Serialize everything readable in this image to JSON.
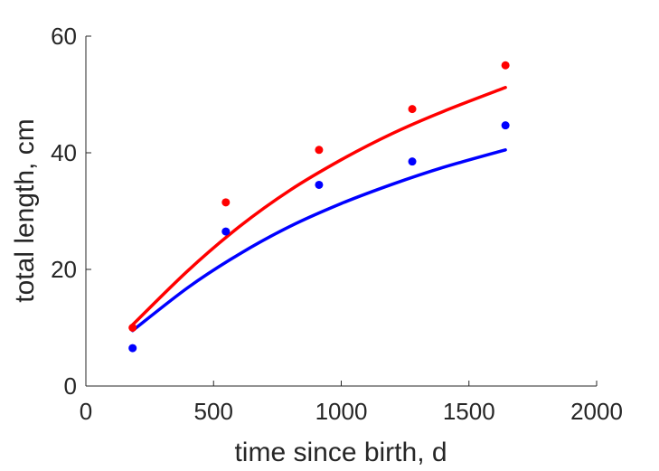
{
  "chart_data": {
    "type": "scatter",
    "title": "",
    "xlabel": "time since birth, d",
    "ylabel": "total length, cm",
    "xlim": [
      0,
      2000
    ],
    "ylim": [
      0,
      60
    ],
    "xticks": [
      0,
      500,
      1000,
      1500,
      2000
    ],
    "yticks": [
      0,
      20,
      40,
      60
    ],
    "xtick_labels": [
      "0",
      "500",
      "1000",
      "1500",
      "2000"
    ],
    "ytick_labels": [
      "0",
      "20",
      "40",
      "60"
    ],
    "grid": false,
    "series": [
      {
        "color": "#ff0000",
        "points": {
          "x": [
            183,
            548,
            913,
            1278,
            1643
          ],
          "y": [
            10,
            31.5,
            40.5,
            47.5,
            55
          ]
        },
        "fit": {
          "x": [
            183,
            400,
            600,
            800,
            1000,
            1200,
            1400,
            1643
          ],
          "y": [
            10.5,
            19.8,
            27.3,
            33.6,
            38.8,
            43.3,
            47.1,
            51.2
          ]
        }
      },
      {
        "color": "#0000ff",
        "points": {
          "x": [
            183,
            548,
            913,
            1278,
            1643
          ],
          "y": [
            6.5,
            26.5,
            34.5,
            38.5,
            44.7
          ]
        },
        "fit": {
          "x": [
            183,
            400,
            600,
            800,
            1000,
            1200,
            1400,
            1643
          ],
          "y": [
            9.5,
            16.9,
            22.6,
            27.4,
            31.3,
            34.6,
            37.5,
            40.5
          ]
        }
      }
    ]
  }
}
